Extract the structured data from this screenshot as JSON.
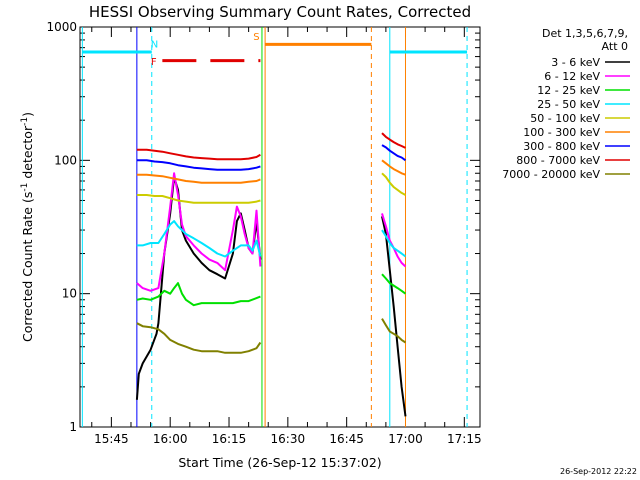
{
  "chart_data": {
    "type": "line",
    "title": "HESSI Observing Summary Count Rates, Corrected",
    "xlabel": "Start Time (26-Sep-12 15:37:02)",
    "ylabel": "Corrected Count Rate (s⁻¹ detector⁻¹)",
    "ylabel_main": "Corrected Count Rate (s",
    "ylabel_sup1": "-1",
    "ylabel_mid": " detector",
    "ylabel_sup2": "-1",
    "ylabel_end": ")",
    "xaxis": {
      "unit": "minutes since 15:00 UT",
      "range": [
        37.0,
        139.0
      ],
      "ticks": [
        45,
        60,
        75,
        90,
        105,
        120,
        135
      ],
      "ticklabels": [
        "15:45",
        "16:00",
        "16:15",
        "16:30",
        "16:45",
        "17:00",
        "17:15"
      ]
    },
    "yaxis": {
      "scale": "log",
      "range": [
        1,
        1000
      ],
      "ticks": [
        1,
        10,
        100,
        1000
      ],
      "ticklabels": [
        "1",
        "10",
        "100",
        "1000"
      ]
    },
    "legend": {
      "placement": "right",
      "header": [
        "Det 1,3,5,6,7,9,",
        "Att 0"
      ]
    },
    "series": [
      {
        "name": "3 - 6 keV",
        "color": "#000000",
        "segments": [
          [
            [
              51.5,
              1.6
            ],
            [
              52,
              2.5
            ],
            [
              53,
              3
            ],
            [
              55,
              3.8
            ],
            [
              56.5,
              5
            ],
            [
              57,
              6
            ],
            [
              58.5,
              20
            ],
            [
              60,
              40
            ],
            [
              61,
              75
            ],
            [
              62,
              60
            ],
            [
              63,
              30
            ],
            [
              64,
              25
            ],
            [
              66,
              20
            ],
            [
              68,
              17
            ],
            [
              70,
              15
            ],
            [
              72,
              14
            ],
            [
              74,
              13
            ],
            [
              76,
              20
            ],
            [
              77,
              35
            ],
            [
              78,
              40
            ],
            [
              79,
              30
            ],
            [
              80,
              22
            ],
            [
              81,
              20
            ],
            [
              82,
              35
            ],
            [
              83,
              18
            ]
          ],
          [
            [
              114,
              38
            ],
            [
              115,
              28
            ],
            [
              116,
              15
            ],
            [
              117,
              8
            ],
            [
              118,
              4
            ],
            [
              119,
              2
            ],
            [
              120,
              1.2
            ]
          ]
        ]
      },
      {
        "name": "6 - 12 keV",
        "color": "#ff00ff",
        "segments": [
          [
            [
              51.5,
              12
            ],
            [
              53,
              11
            ],
            [
              55,
              10.5
            ],
            [
              57,
              11
            ],
            [
              58.5,
              20
            ],
            [
              60,
              45
            ],
            [
              61,
              80
            ],
            [
              62,
              55
            ],
            [
              63,
              33
            ],
            [
              64,
              27
            ],
            [
              66,
              23
            ],
            [
              68,
              20
            ],
            [
              70,
              18
            ],
            [
              72,
              17
            ],
            [
              74,
              15
            ],
            [
              76,
              30
            ],
            [
              77,
              45
            ],
            [
              78,
              38
            ],
            [
              79,
              28
            ],
            [
              80,
              22
            ],
            [
              81,
              20
            ],
            [
              82,
              42
            ],
            [
              83,
              16
            ]
          ],
          [
            [
              114,
              40
            ],
            [
              115,
              32
            ],
            [
              116,
              25
            ],
            [
              117,
              22
            ],
            [
              118,
              19
            ],
            [
              119,
              17
            ],
            [
              120,
              16
            ]
          ]
        ]
      },
      {
        "name": "12 - 25 keV",
        "color": "#00e000",
        "segments": [
          [
            [
              51.5,
              9
            ],
            [
              53,
              9.2
            ],
            [
              55,
              9
            ],
            [
              57,
              9.5
            ],
            [
              58.5,
              10.5
            ],
            [
              60,
              10
            ],
            [
              61,
              11
            ],
            [
              62,
              12
            ],
            [
              63,
              10
            ],
            [
              64,
              9
            ],
            [
              66,
              8.2
            ],
            [
              68,
              8.5
            ],
            [
              70,
              8.5
            ],
            [
              72,
              8.5
            ],
            [
              74,
              8.5
            ],
            [
              76,
              8.5
            ],
            [
              78,
              8.8
            ],
            [
              80,
              8.8
            ],
            [
              83,
              9.5
            ]
          ],
          [
            [
              114,
              14
            ],
            [
              115,
              13
            ],
            [
              116,
              12
            ],
            [
              117,
              11.5
            ],
            [
              118,
              11
            ],
            [
              119,
              10.5
            ],
            [
              120,
              10
            ]
          ]
        ]
      },
      {
        "name": "25 - 50 keV",
        "color": "#00e5ff",
        "segments": [
          [
            [
              51.5,
              23
            ],
            [
              53,
              23
            ],
            [
              55,
              24
            ],
            [
              57,
              24
            ],
            [
              58.5,
              28
            ],
            [
              60,
              33
            ],
            [
              61,
              35
            ],
            [
              62,
              32
            ],
            [
              63,
              30
            ],
            [
              64,
              28
            ],
            [
              66,
              26
            ],
            [
              68,
              24
            ],
            [
              70,
              22
            ],
            [
              72,
              20
            ],
            [
              74,
              19
            ],
            [
              76,
              21
            ],
            [
              78,
              23
            ],
            [
              80,
              23
            ],
            [
              81,
              21
            ],
            [
              82,
              25
            ],
            [
              83,
              19
            ]
          ],
          [
            [
              114,
              30
            ],
            [
              115,
              27
            ],
            [
              116,
              24
            ],
            [
              117,
              22
            ],
            [
              118,
              21
            ],
            [
              119,
              20
            ],
            [
              120,
              19
            ]
          ]
        ]
      },
      {
        "name": "50 - 100 keV",
        "color": "#cccc00",
        "segments": [
          [
            [
              51.5,
              55
            ],
            [
              54,
              55
            ],
            [
              56,
              54
            ],
            [
              58,
              54
            ],
            [
              60,
              52
            ],
            [
              62,
              50
            ],
            [
              64,
              49
            ],
            [
              66,
              48
            ],
            [
              68,
              48
            ],
            [
              70,
              48
            ],
            [
              72,
              48
            ],
            [
              74,
              48
            ],
            [
              76,
              48
            ],
            [
              78,
              48
            ],
            [
              80,
              48
            ],
            [
              82,
              49
            ],
            [
              83,
              50
            ]
          ],
          [
            [
              114,
              80
            ],
            [
              115,
              75
            ],
            [
              116,
              68
            ],
            [
              117,
              63
            ],
            [
              118,
              60
            ],
            [
              119,
              57
            ],
            [
              120,
              55
            ]
          ]
        ]
      },
      {
        "name": "100 - 300 keV",
        "color": "#ff8000",
        "segments": [
          [
            [
              51.5,
              78
            ],
            [
              54,
              78
            ],
            [
              56,
              77
            ],
            [
              58,
              76
            ],
            [
              60,
              74
            ],
            [
              62,
              72
            ],
            [
              64,
              70
            ],
            [
              66,
              69
            ],
            [
              68,
              68
            ],
            [
              70,
              68
            ],
            [
              72,
              68
            ],
            [
              74,
              68
            ],
            [
              76,
              68
            ],
            [
              78,
              68
            ],
            [
              80,
              69
            ],
            [
              82,
              70
            ],
            [
              83,
              72
            ]
          ],
          [
            [
              114,
              100
            ],
            [
              115,
              95
            ],
            [
              116,
              90
            ],
            [
              117,
              86
            ],
            [
              118,
              83
            ],
            [
              119,
              80
            ],
            [
              120,
              78
            ]
          ]
        ]
      },
      {
        "name": "300 - 800 keV",
        "color": "#0000ff",
        "segments": [
          [
            [
              51.5,
              100
            ],
            [
              54,
              100
            ],
            [
              56,
              98
            ],
            [
              58,
              97
            ],
            [
              60,
              95
            ],
            [
              62,
              92
            ],
            [
              64,
              90
            ],
            [
              66,
              88
            ],
            [
              68,
              87
            ],
            [
              70,
              86
            ],
            [
              72,
              85
            ],
            [
              74,
              85
            ],
            [
              76,
              85
            ],
            [
              78,
              85
            ],
            [
              80,
              86
            ],
            [
              82,
              88
            ],
            [
              83,
              90
            ]
          ],
          [
            [
              114,
              130
            ],
            [
              115,
              125
            ],
            [
              116,
              118
            ],
            [
              117,
              113
            ],
            [
              118,
              108
            ],
            [
              119,
              105
            ],
            [
              120,
              100
            ]
          ]
        ]
      },
      {
        "name": "800 - 7000 keV",
        "color": "#e00000",
        "segments": [
          [
            [
              51.5,
              120
            ],
            [
              54,
              120
            ],
            [
              56,
              118
            ],
            [
              58,
              116
            ],
            [
              60,
              113
            ],
            [
              62,
              110
            ],
            [
              64,
              107
            ],
            [
              66,
              105
            ],
            [
              68,
              104
            ],
            [
              70,
              103
            ],
            [
              72,
              102
            ],
            [
              74,
              102
            ],
            [
              76,
              102
            ],
            [
              78,
              102
            ],
            [
              80,
              103
            ],
            [
              82,
              106
            ],
            [
              83,
              110
            ]
          ],
          [
            [
              114,
              160
            ],
            [
              115,
              150
            ],
            [
              116,
              143
            ],
            [
              117,
              137
            ],
            [
              118,
              132
            ],
            [
              119,
              128
            ],
            [
              120,
              124
            ]
          ]
        ]
      },
      {
        "name": "7000 - 20000 keV",
        "color": "#808000",
        "segments": [
          [
            [
              51.5,
              6
            ],
            [
              53,
              5.7
            ],
            [
              55,
              5.6
            ],
            [
              57,
              5.4
            ],
            [
              58.5,
              5
            ],
            [
              60,
              4.5
            ],
            [
              62,
              4.2
            ],
            [
              64,
              4
            ],
            [
              66,
              3.8
            ],
            [
              68,
              3.7
            ],
            [
              70,
              3.7
            ],
            [
              72,
              3.7
            ],
            [
              74,
              3.6
            ],
            [
              76,
              3.6
            ],
            [
              78,
              3.6
            ],
            [
              80,
              3.7
            ],
            [
              82,
              3.9
            ],
            [
              83,
              4.3
            ]
          ],
          [
            [
              114,
              6.5
            ],
            [
              115,
              5.8
            ],
            [
              116,
              5.2
            ],
            [
              117,
              5
            ],
            [
              118,
              4.8
            ],
            [
              119,
              4.5
            ],
            [
              120,
              4.3
            ]
          ]
        ]
      }
    ],
    "vertical_markers": [
      {
        "x": 37.6,
        "color": "#00e5ff",
        "style": "solid"
      },
      {
        "x": 55.3,
        "color": "#00e5ff",
        "style": "dashed"
      },
      {
        "x": 51.5,
        "color": "#0000ff",
        "style": "solid"
      },
      {
        "x": 83.4,
        "color": "#00e000",
        "style": "solid"
      },
      {
        "x": 84.2,
        "color": "#ff8000",
        "style": "solid"
      },
      {
        "x": 111.3,
        "color": "#ff8000",
        "style": "dashed"
      },
      {
        "x": 116.0,
        "color": "#00e5ff",
        "style": "solid"
      },
      {
        "x": 120.0,
        "color": "#ff8000",
        "style": "solid"
      },
      {
        "x": 135.7,
        "color": "#00e5ff",
        "style": "dashed"
      }
    ],
    "level_bars": [
      {
        "x_start": 37.6,
        "x_end": 55.3,
        "y": 650,
        "color": "#00e5ff",
        "style": "solid"
      },
      {
        "x_start": 116.0,
        "x_end": 135.7,
        "y": 650,
        "color": "#00e5ff",
        "style": "solid"
      },
      {
        "x_start": 84.2,
        "x_end": 111.3,
        "y": 740,
        "color": "#ff8000",
        "style": "solid"
      },
      {
        "x_start": 58.0,
        "x_end": 83.0,
        "y": 560,
        "color": "#e00000",
        "style": "dashed"
      }
    ],
    "flag_labels": [
      {
        "text": "N",
        "x": 56.0,
        "y": 700,
        "color": "#00e5ff"
      },
      {
        "text": "F",
        "x": 55.8,
        "y": 520,
        "color": "#e00000"
      },
      {
        "text": "S",
        "x": 82.0,
        "y": 800,
        "color": "#ff8000"
      }
    ]
  },
  "footer": {
    "timestamp": "26-Sep-2012 22:22"
  }
}
